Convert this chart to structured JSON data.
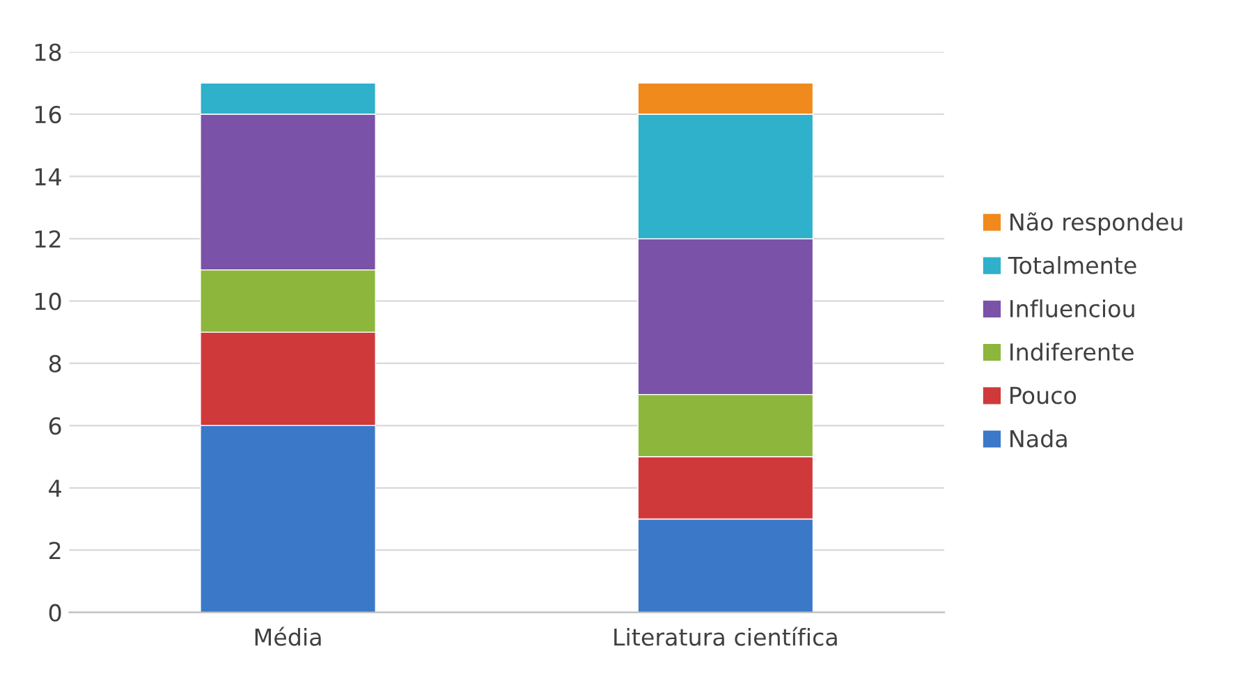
{
  "chart_data": {
    "type": "bar",
    "stacked": true,
    "categories": [
      "Média",
      "Literatura científica"
    ],
    "series": [
      {
        "name": "Nada",
        "color": "#3b78c8",
        "values": [
          6,
          3
        ]
      },
      {
        "name": "Pouco",
        "color": "#d0393a",
        "values": [
          3,
          2
        ]
      },
      {
        "name": "Indiferente",
        "color": "#8db63c",
        "values": [
          2,
          2
        ]
      },
      {
        "name": "Influenciou",
        "color": "#7a52a8",
        "values": [
          5,
          5
        ]
      },
      {
        "name": "Totalmente",
        "color": "#2fb0cb",
        "values": [
          1,
          4
        ]
      },
      {
        "name": "Não respondeu",
        "color": "#f08a1c",
        "values": [
          null,
          1
        ]
      }
    ],
    "ylim": [
      0,
      18
    ],
    "yticks": [
      0,
      2,
      4,
      6,
      8,
      10,
      12,
      14,
      16,
      18
    ],
    "grid": "y",
    "legend": "right"
  }
}
